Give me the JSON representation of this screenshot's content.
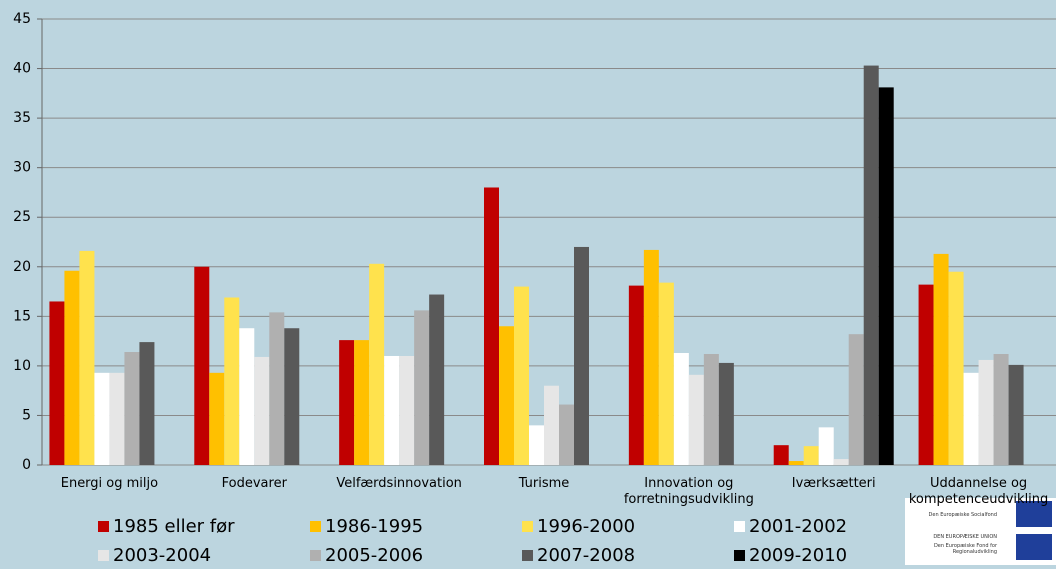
{
  "chart_data": {
    "type": "bar",
    "categories": [
      "Energi og miljo",
      "Fodevarer",
      "Velfærdsinnovation",
      "Turisme",
      "Innovation og forretningsudvikling",
      "Iværksætteri",
      "Uddannelse og kompetenceudvikling"
    ],
    "series": [
      {
        "name": "1985 eller før",
        "color": "#c00000",
        "values": [
          16.5,
          20,
          12.6,
          28,
          18.1,
          2,
          18.2
        ]
      },
      {
        "name": "1986-1995",
        "color": "#ffc000",
        "values": [
          19.6,
          9.3,
          12.6,
          14,
          21.7,
          0.4,
          21.3
        ]
      },
      {
        "name": "1996-2000",
        "color": "#ffe24d",
        "values": [
          21.6,
          16.9,
          20.3,
          18,
          18.4,
          1.9,
          19.5
        ]
      },
      {
        "name": "2001-2002",
        "color": "#ffffff",
        "values": [
          9.3,
          13.8,
          11,
          4,
          11.3,
          3.8,
          9.3
        ]
      },
      {
        "name": "2003-2004",
        "color": "#e6e6e6",
        "values": [
          9.3,
          10.9,
          11,
          8,
          9.1,
          0.6,
          10.6
        ]
      },
      {
        "name": "2005-2006",
        "color": "#b0b0b0",
        "values": [
          11.4,
          15.4,
          15.6,
          6.1,
          11.2,
          13.2,
          11.2
        ]
      },
      {
        "name": "2007-2008",
        "color": "#595959",
        "values": [
          12.4,
          13.8,
          17.2,
          22,
          10.3,
          40.3,
          10.1
        ]
      },
      {
        "name": "2009-2010",
        "color": "#000000",
        "values": [
          null,
          null,
          null,
          null,
          null,
          38.1,
          null
        ]
      }
    ],
    "ylim": [
      0,
      45
    ],
    "yticks": [
      0,
      5,
      10,
      15,
      20,
      25,
      30,
      35,
      40,
      45
    ],
    "grid": true,
    "logo_texts": [
      "Den Europæiske Socialfond",
      "DEN EUROPÆISKE UNION",
      "Den Europæiske Fond for Regionaludvikling"
    ]
  }
}
